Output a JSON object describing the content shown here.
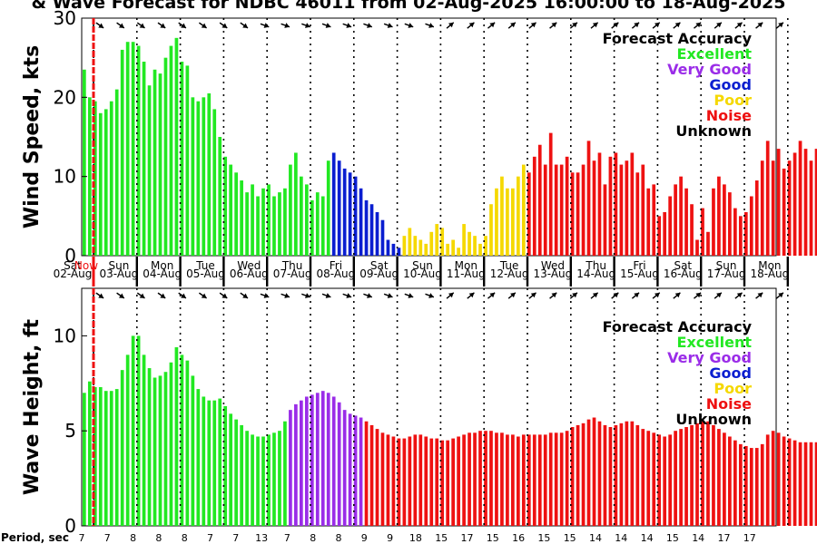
{
  "title": "& Wave Forecast for NDBC 46011 from 02-Aug-2025 16:00:00 to 18-Aug-2025",
  "legend": {
    "heading": "Forecast Accuracy",
    "items": [
      {
        "label": "Excellent",
        "color": "#22e822"
      },
      {
        "label": "Very Good",
        "color": "#9a2ce8"
      },
      {
        "label": "Good",
        "color": "#0a1ed0"
      },
      {
        "label": "Poor",
        "color": "#f5d800"
      },
      {
        "label": "Noise",
        "color": "#ee1111"
      },
      {
        "label": "Unknown",
        "color": "#000000"
      }
    ]
  },
  "day_labels": [
    {
      "day": "Sat",
      "date": "02-Aug"
    },
    {
      "day": "Sun",
      "date": "03-Aug"
    },
    {
      "day": "Mon",
      "date": "04-Aug"
    },
    {
      "day": "Tue",
      "date": "05-Aug"
    },
    {
      "day": "Wed",
      "date": "06-Aug"
    },
    {
      "day": "Thu",
      "date": "07-Aug"
    },
    {
      "day": "Fri",
      "date": "08-Aug"
    },
    {
      "day": "Sat",
      "date": "09-Aug"
    },
    {
      "day": "Sun",
      "date": "10-Aug"
    },
    {
      "day": "Mon",
      "date": "11-Aug"
    },
    {
      "day": "Tue",
      "date": "12-Aug"
    },
    {
      "day": "Wed",
      "date": "13-Aug"
    },
    {
      "day": "Thu",
      "date": "14-Aug"
    },
    {
      "day": "Fri",
      "date": "15-Aug"
    },
    {
      "day": "Sat",
      "date": "16-Aug"
    },
    {
      "day": "Sun",
      "date": "17-Aug"
    },
    {
      "day": "Mon",
      "date": "18-Aug"
    }
  ],
  "now_label": "Now",
  "period_label": "Period, sec",
  "period_values": [
    "7",
    "7",
    "8",
    "8",
    "8",
    "7",
    "7",
    "13",
    "7",
    "8",
    "8",
    "9",
    "9",
    "18",
    "15",
    "17",
    "15",
    "16",
    "15",
    "15",
    "14",
    "14",
    "14",
    "15",
    "14",
    "17",
    "17"
  ],
  "chart_data": [
    {
      "type": "bar",
      "title": "",
      "xlabel": "",
      "ylabel": "Wind Speed, kts",
      "ylim": [
        0,
        30
      ],
      "yticks": [
        0,
        10,
        20,
        30
      ],
      "x_start": "02-Aug 16:00",
      "step_hours": 3,
      "values": [
        23.5,
        20,
        19.5,
        18,
        18.5,
        19.5,
        21,
        26,
        27,
        27,
        26.5,
        24.5,
        21.5,
        23.5,
        23,
        25,
        26.5,
        27.5,
        24.5,
        24,
        20,
        19.5,
        20,
        20.5,
        18.5,
        15,
        12.5,
        11.5,
        10.5,
        9.5,
        8,
        9,
        7.5,
        8.5,
        9,
        7.5,
        8,
        8.5,
        11.5,
        13,
        10,
        9,
        7,
        8,
        7.5,
        12,
        13,
        12,
        11,
        10.5,
        10,
        8.5,
        7,
        6.5,
        5.5,
        4.5,
        2,
        1.5,
        1,
        2.5,
        3.5,
        2.5,
        2,
        1.5,
        3,
        4,
        3.5,
        1.5,
        2,
        1,
        4,
        3,
        2.5,
        1.5,
        2.5,
        6.5,
        8.5,
        10,
        8.5,
        8.5,
        10,
        11.5,
        10.5,
        12.5,
        14,
        11.5,
        15.5,
        11.5,
        11.5,
        12.5,
        10.5,
        10.5,
        11.5,
        14.5,
        12,
        13,
        9,
        12.5,
        13,
        11.5,
        12,
        13,
        10.5,
        11.5,
        8.5,
        9,
        5,
        5.5,
        7.5,
        9,
        10,
        8.5,
        6.5,
        2,
        6,
        3,
        8.5,
        10,
        9,
        8,
        6,
        5,
        5.5,
        7.5,
        9.5,
        12,
        14.5,
        12,
        13.5,
        11,
        12,
        13,
        14.5,
        13.5,
        12,
        13.5,
        14,
        14.5,
        13.5,
        13.5,
        14
      ],
      "accuracy": [
        "Excellent",
        "Excellent",
        "Excellent",
        "Excellent",
        "Excellent",
        "Excellent",
        "Excellent",
        "Excellent",
        "Excellent",
        "Excellent",
        "Excellent",
        "Excellent",
        "Excellent",
        "Excellent",
        "Excellent",
        "Excellent",
        "Excellent",
        "Excellent",
        "Excellent",
        "Excellent",
        "Excellent",
        "Excellent",
        "Excellent",
        "Excellent",
        "Excellent",
        "Excellent",
        "Excellent",
        "Excellent",
        "Excellent",
        "Excellent",
        "Excellent",
        "Excellent",
        "Excellent",
        "Excellent",
        "Excellent",
        "Excellent",
        "Excellent",
        "Excellent",
        "Excellent",
        "Excellent",
        "Excellent",
        "Excellent",
        "Excellent",
        "Excellent",
        "Excellent",
        "Excellent",
        "Good",
        "Good",
        "Good",
        "Good",
        "Good",
        "Good",
        "Good",
        "Good",
        "Good",
        "Good",
        "Good",
        "Good",
        "Good",
        "Poor",
        "Poor",
        "Poor",
        "Poor",
        "Poor",
        "Poor",
        "Poor",
        "Poor",
        "Poor",
        "Poor",
        "Poor",
        "Poor",
        "Poor",
        "Poor",
        "Poor",
        "Poor",
        "Poor",
        "Poor",
        "Poor",
        "Poor",
        "Poor",
        "Poor",
        "Poor",
        "Noise",
        "Noise",
        "Noise",
        "Noise",
        "Noise",
        "Noise",
        "Noise",
        "Noise",
        "Noise",
        "Noise",
        "Noise",
        "Noise",
        "Noise",
        "Noise",
        "Noise",
        "Noise",
        "Noise",
        "Noise",
        "Noise",
        "Noise",
        "Noise",
        "Noise",
        "Noise",
        "Noise",
        "Noise",
        "Noise",
        "Noise",
        "Noise",
        "Noise",
        "Noise",
        "Noise",
        "Noise",
        "Noise",
        "Noise",
        "Noise",
        "Noise",
        "Noise",
        "Noise",
        "Noise",
        "Noise",
        "Noise",
        "Noise",
        "Noise",
        "Noise",
        "Noise",
        "Noise",
        "Noise",
        "Noise",
        "Noise",
        "Noise",
        "Noise",
        "Noise",
        "Noise",
        "Noise",
        "Noise",
        "Noise"
      ]
    },
    {
      "type": "bar",
      "title": "",
      "xlabel": "",
      "ylabel": "Wave Height, ft",
      "ylim": [
        0,
        12.5
      ],
      "yticks": [
        0,
        5,
        10
      ],
      "x_start": "02-Aug 16:00",
      "step_hours": 3,
      "values": [
        7,
        7.6,
        7.3,
        7.3,
        7.1,
        7.1,
        7.2,
        8.2,
        9,
        10,
        10,
        9,
        8.3,
        7.8,
        7.9,
        8.1,
        8.6,
        9.4,
        9,
        8.7,
        7.9,
        7.2,
        6.8,
        6.6,
        6.6,
        6.7,
        6.3,
        5.9,
        5.6,
        5.3,
        5,
        4.8,
        4.7,
        4.7,
        4.8,
        4.9,
        5,
        5.5,
        6.1,
        6.4,
        6.6,
        6.8,
        6.9,
        7,
        7.1,
        7,
        6.8,
        6.5,
        6.1,
        5.9,
        5.8,
        5.7,
        5.5,
        5.3,
        5.1,
        4.9,
        4.8,
        4.7,
        4.6,
        4.6,
        4.7,
        4.8,
        4.8,
        4.7,
        4.6,
        4.6,
        4.5,
        4.5,
        4.6,
        4.7,
        4.8,
        4.9,
        4.9,
        5,
        5,
        5,
        4.9,
        4.9,
        4.8,
        4.8,
        4.7,
        4.8,
        4.8,
        4.8,
        4.8,
        4.8,
        4.9,
        4.9,
        4.9,
        5,
        5.2,
        5.3,
        5.4,
        5.6,
        5.7,
        5.5,
        5.3,
        5.2,
        5.3,
        5.4,
        5.5,
        5.5,
        5.3,
        5.1,
        5,
        4.9,
        4.8,
        4.7,
        4.8,
        5,
        5.1,
        5.2,
        5.3,
        5.4,
        5.5,
        5.5,
        5.3,
        5.1,
        4.9,
        4.7,
        4.5,
        4.3,
        4.2,
        4.1,
        4.1,
        4.3,
        4.8,
        5,
        4.9,
        4.7,
        4.6,
        4.5,
        4.4,
        4.4,
        4.4,
        4.4,
        4.5,
        4.5,
        4.5
      ],
      "accuracy": [
        "Excellent",
        "Excellent",
        "Excellent",
        "Excellent",
        "Excellent",
        "Excellent",
        "Excellent",
        "Excellent",
        "Excellent",
        "Excellent",
        "Excellent",
        "Excellent",
        "Excellent",
        "Excellent",
        "Excellent",
        "Excellent",
        "Excellent",
        "Excellent",
        "Excellent",
        "Excellent",
        "Excellent",
        "Excellent",
        "Excellent",
        "Excellent",
        "Excellent",
        "Excellent",
        "Excellent",
        "Excellent",
        "Excellent",
        "Excellent",
        "Excellent",
        "Excellent",
        "Excellent",
        "Excellent",
        "Excellent",
        "Excellent",
        "Excellent",
        "Excellent",
        "Very Good",
        "Very Good",
        "Very Good",
        "Very Good",
        "Very Good",
        "Very Good",
        "Very Good",
        "Very Good",
        "Very Good",
        "Very Good",
        "Very Good",
        "Very Good",
        "Very Good",
        "Very Good",
        "Noise",
        "Noise",
        "Noise",
        "Noise",
        "Noise",
        "Noise",
        "Noise",
        "Noise",
        "Noise",
        "Noise",
        "Noise",
        "Noise",
        "Noise",
        "Noise",
        "Noise",
        "Noise",
        "Noise",
        "Noise",
        "Noise",
        "Noise",
        "Noise",
        "Noise",
        "Noise",
        "Noise",
        "Noise",
        "Noise",
        "Noise",
        "Noise",
        "Noise",
        "Noise",
        "Noise",
        "Noise",
        "Noise",
        "Noise",
        "Noise",
        "Noise",
        "Noise",
        "Noise",
        "Noise",
        "Noise",
        "Noise",
        "Noise",
        "Noise",
        "Noise",
        "Noise",
        "Noise",
        "Noise",
        "Noise",
        "Noise",
        "Noise",
        "Noise",
        "Noise",
        "Noise",
        "Noise",
        "Noise",
        "Noise",
        "Noise",
        "Noise",
        "Noise",
        "Noise",
        "Noise",
        "Noise",
        "Noise",
        "Noise",
        "Noise",
        "Noise",
        "Noise",
        "Noise",
        "Noise",
        "Noise",
        "Noise",
        "Noise",
        "Noise",
        "Noise",
        "Noise",
        "Noise",
        "Noise",
        "Noise",
        "Noise",
        "Noise",
        "Noise",
        "Noise",
        "Noise",
        "Noise",
        "Noise",
        "Noise"
      ]
    }
  ]
}
